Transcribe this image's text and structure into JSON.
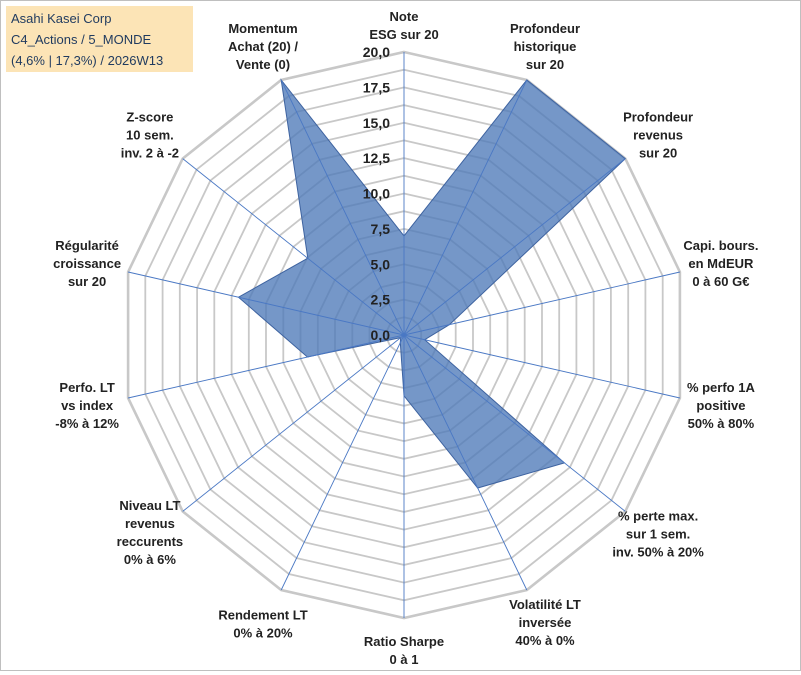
{
  "title_box": {
    "line1": "Asahi Kasei Corp",
    "line2": "C4_Actions / 5_MONDE",
    "line3": "(4,6% | 17,3%) / 2026W13"
  },
  "colors": {
    "grid": "#c8c8c8",
    "spoke": "#4a78c4",
    "fill": "#4e7ab8",
    "stroke": "#3e63a0",
    "text": "#222222",
    "title_bg": "#fce4b6"
  },
  "chart_data": {
    "type": "radar",
    "rmin": 0,
    "rmax": 20,
    "step": 1.25,
    "tick_labels": [
      "0,0",
      "2,5",
      "5,0",
      "7,5",
      "10,0",
      "12,5",
      "15,0",
      "17,5",
      "20,0"
    ],
    "axes": [
      {
        "lines": [
          "Note",
          "ESG sur 20"
        ],
        "value": 7.0
      },
      {
        "lines": [
          "Profondeur",
          "historique",
          "sur 20"
        ],
        "value": 20.0
      },
      {
        "lines": [
          "Profondeur",
          "revenus",
          "sur 20"
        ],
        "value": 20.0
      },
      {
        "lines": [
          "Capi. bours.",
          "en MdEUR",
          "0 à 60 G€"
        ],
        "value": 3.3
      },
      {
        "lines": [
          "% perfo 1A",
          "positive",
          "50% à 80%"
        ],
        "value": 1.5
      },
      {
        "lines": [
          "% perte max.",
          "sur 1 sem.",
          "inv. 50% à 20%"
        ],
        "value": 14.5
      },
      {
        "lines": [
          "Volatilité LT",
          "inversée",
          "40% à 0%"
        ],
        "value": 12.0
      },
      {
        "lines": [
          "Ratio Sharpe",
          "0 à 1"
        ],
        "value": 4.3
      },
      {
        "lines": [
          "Rendement LT",
          "0% à 20%"
        ],
        "value": 0.6
      },
      {
        "lines": [
          "Niveau LT",
          "revenus",
          "reccurents",
          "0% à 6%"
        ],
        "value": 0.3
      },
      {
        "lines": [
          "Perfo. LT",
          "vs index",
          "-8% à 12%"
        ],
        "value": 7.0
      },
      {
        "lines": [
          "Régularité",
          "croissance",
          "sur 20"
        ],
        "value": 12.0
      },
      {
        "lines": [
          "Z-score",
          "10 sem.",
          "inv. 2 à -2"
        ],
        "value": 8.7
      },
      {
        "lines": [
          "Momentum",
          "Achat (20) /",
          "Vente (0)"
        ],
        "value": 20.0
      }
    ]
  }
}
